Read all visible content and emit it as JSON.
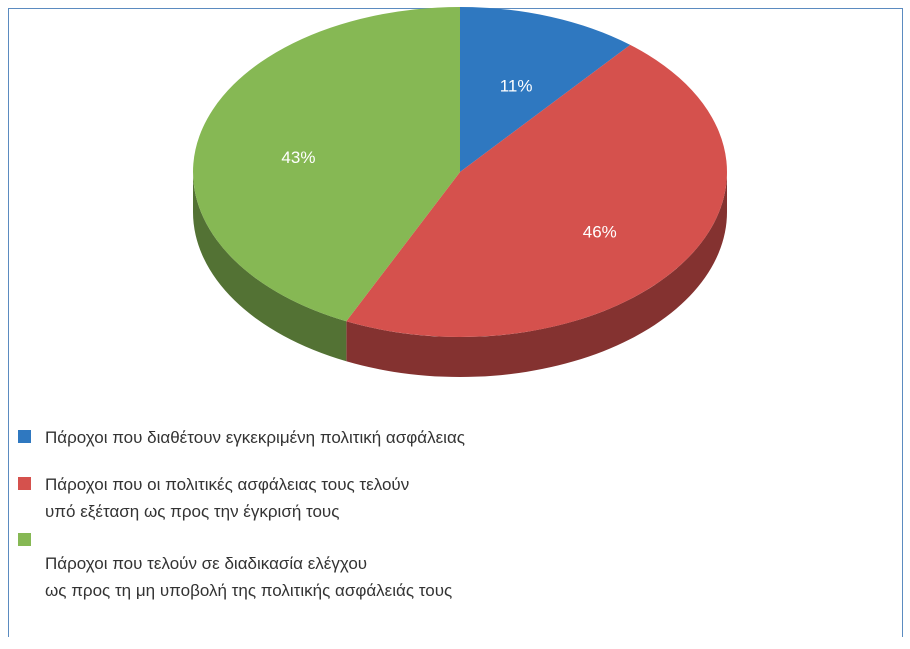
{
  "chart_data": {
    "type": "pie",
    "categories": [
      "Πάροχοι που διαθέτουν εγκεκριμένη πολιτική ασφάλειας",
      "Πάροχοι που οι πολιτικές  ασφάλειας τους τελούν\nυπό εξέταση ως προς την έγκρισή τους",
      "Πάροχοι που τελούν σε διαδικασία ελέγχου\nως προς τη μη υποβολή της πολιτικής ασφάλειάς τους"
    ],
    "values": [
      11,
      46,
      43
    ],
    "value_labels": [
      "11%",
      "46%",
      "43%"
    ],
    "colors": [
      "#2f78c0",
      "#d5514d",
      "#86b854"
    ],
    "legend": "bottom"
  }
}
